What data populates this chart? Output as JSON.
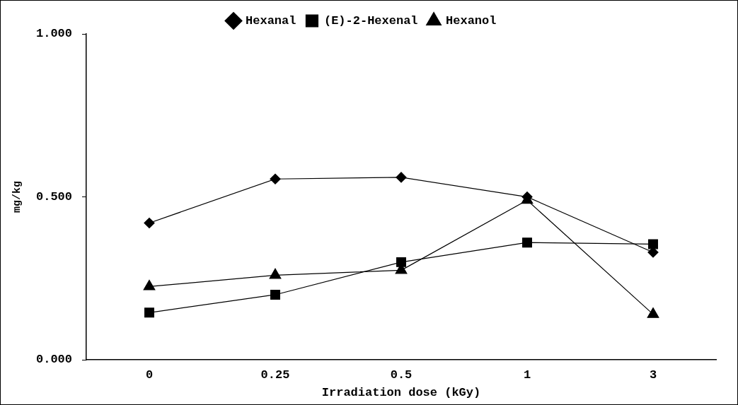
{
  "chart_data": {
    "type": "line",
    "xlabel": "Irradiation dose (kGy)",
    "ylabel": "mg/kg",
    "categories": [
      "0",
      "0.25",
      "0.5",
      "1",
      "3"
    ],
    "series": [
      {
        "name": "Hexanal",
        "color": "#000000",
        "marker": "diamond",
        "values": [
          0.42,
          0.555,
          0.56,
          0.5,
          0.33
        ]
      },
      {
        "name": "(E)-2-Hexenal",
        "color": "#000000",
        "marker": "square",
        "values": [
          0.145,
          0.2,
          0.3,
          0.36,
          0.355
        ]
      },
      {
        "name": "Hexanol",
        "color": "#000000",
        "marker": "triangle",
        "values": [
          0.225,
          0.26,
          0.275,
          0.49,
          0.14
        ]
      }
    ],
    "ylim": [
      0,
      1
    ],
    "yticks": [
      {
        "value": 0,
        "label": "0.000"
      },
      {
        "value": 0.5,
        "label": "0.500"
      },
      {
        "value": 1,
        "label": "1.000"
      }
    ],
    "grid": false,
    "legend": "top",
    "line_style": "solid"
  }
}
